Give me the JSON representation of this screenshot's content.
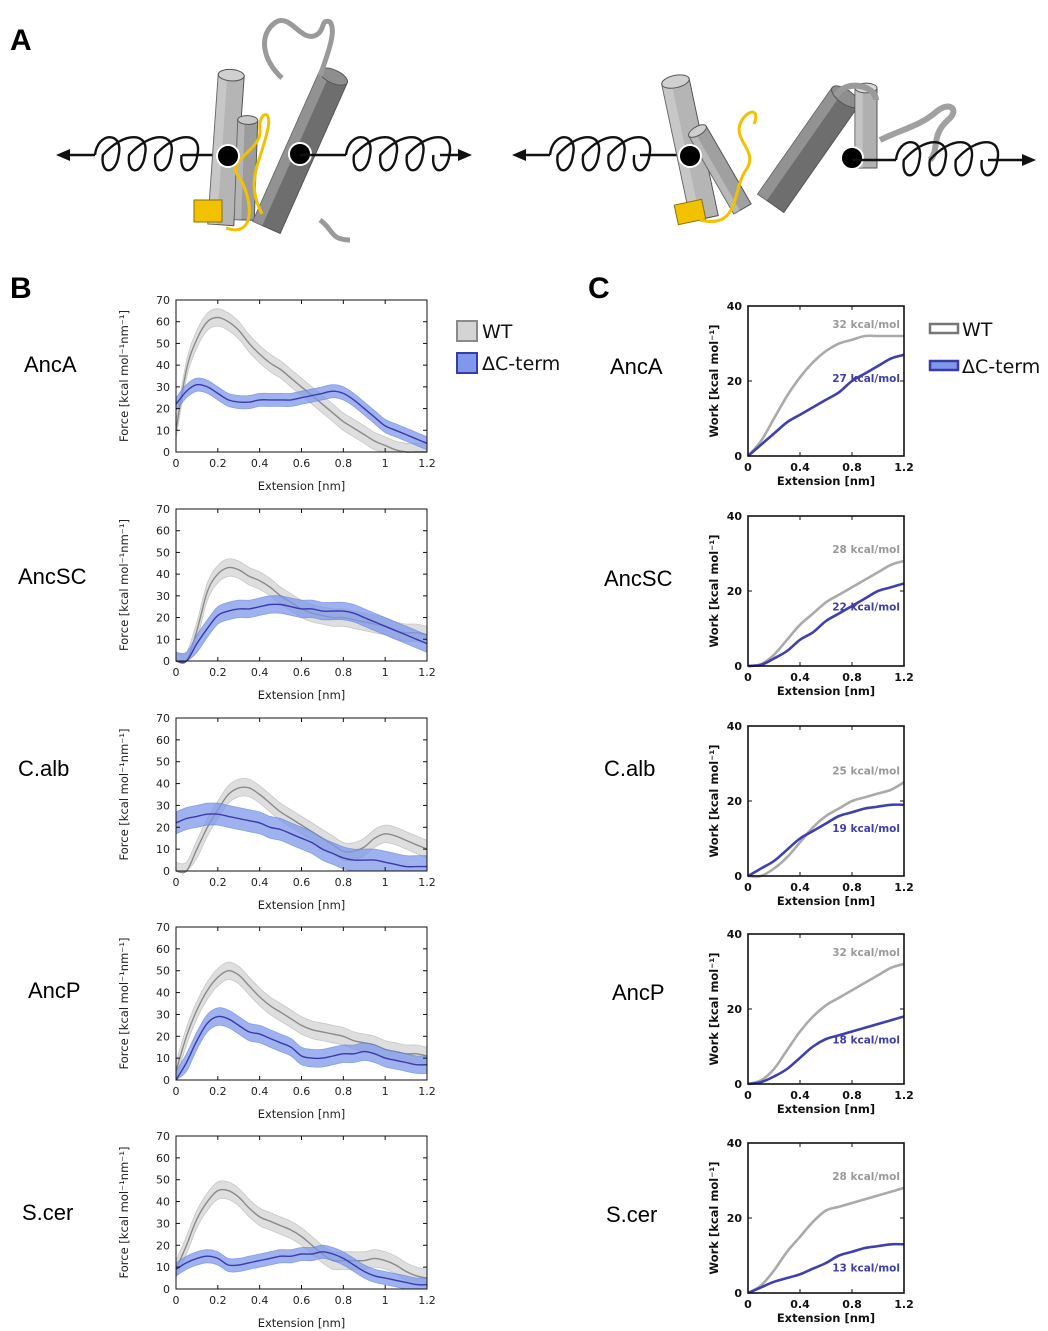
{
  "panels": {
    "a": "A",
    "b": "B",
    "c": "C"
  },
  "colors": {
    "wt_line": "#8a8a8a",
    "wt_band": "#d4d4d4",
    "dc_line": "#3a3aa8",
    "dc_band": "#7f98ea",
    "work_wt": "#aaaaaa",
    "work_dc": "#3f3fad",
    "helix_light": "#b8b8b8",
    "helix_dark": "#6a6a6a",
    "cterm_yellow": "#f2c200"
  },
  "legend_b": {
    "wt": "WT",
    "dc": "ΔC-term"
  },
  "legend_c": {
    "wt": "WT",
    "dc": "ΔC-term"
  },
  "chart_data": [
    {
      "panel": "B",
      "row": "AncA",
      "type": "line",
      "xlabel": "Extension [nm]",
      "ylabel": "Force [kcal mol⁻¹nm⁻¹]",
      "xlim": [
        0,
        1.2
      ],
      "ylim": [
        0,
        70
      ],
      "xticks": [
        "0",
        "0.2",
        "0.4",
        "0.6",
        "0.8",
        "1",
        "1.2"
      ],
      "yticks": [
        "0",
        "10",
        "20",
        "30",
        "40",
        "50",
        "60",
        "70"
      ],
      "x": [
        0,
        0.05,
        0.1,
        0.15,
        0.2,
        0.25,
        0.3,
        0.35,
        0.4,
        0.45,
        0.5,
        0.55,
        0.6,
        0.65,
        0.7,
        0.75,
        0.8,
        0.85,
        0.9,
        0.95,
        1.0,
        1.05,
        1.1,
        1.15,
        1.2
      ],
      "series": [
        {
          "name": "WT",
          "values": [
            10,
            38,
            52,
            60,
            62,
            60,
            56,
            50,
            45,
            41,
            38,
            34,
            30,
            26,
            22,
            18,
            14,
            11,
            8,
            5,
            3,
            1,
            0,
            0,
            0
          ],
          "band": 4
        },
        {
          "name": "ΔC-term",
          "values": [
            22,
            28,
            31,
            30,
            27,
            24,
            23,
            23,
            24,
            24,
            24,
            24,
            25,
            26,
            27,
            28,
            27,
            24,
            20,
            16,
            12,
            10,
            8,
            6,
            4
          ],
          "band": 3
        }
      ]
    },
    {
      "panel": "B",
      "row": "AncSC",
      "type": "line",
      "xlabel": "Extension [nm]",
      "ylabel": "Force [kcal mol⁻¹nm⁻¹]",
      "xlim": [
        0,
        1.2
      ],
      "ylim": [
        0,
        70
      ],
      "xticks": [
        "0",
        "0.2",
        "0.4",
        "0.6",
        "0.8",
        "1",
        "1.2"
      ],
      "yticks": [
        "0",
        "10",
        "20",
        "30",
        "40",
        "50",
        "60",
        "70"
      ],
      "x": [
        0,
        0.05,
        0.1,
        0.15,
        0.2,
        0.25,
        0.3,
        0.35,
        0.4,
        0.45,
        0.5,
        0.55,
        0.6,
        0.65,
        0.7,
        0.75,
        0.8,
        0.85,
        0.9,
        0.95,
        1.0,
        1.05,
        1.1,
        1.15,
        1.2
      ],
      "series": [
        {
          "name": "WT",
          "values": [
            0,
            0,
            14,
            32,
            40,
            43,
            42,
            39,
            37,
            34,
            30,
            27,
            24,
            22,
            21,
            20,
            20,
            19,
            18,
            17,
            16,
            14,
            13,
            13,
            12
          ],
          "band": 4
        },
        {
          "name": "ΔC-term",
          "values": [
            0,
            0,
            8,
            15,
            21,
            23,
            24,
            24,
            25,
            26,
            26,
            25,
            24,
            24,
            23,
            23,
            23,
            22,
            20,
            18,
            16,
            14,
            12,
            10,
            8
          ],
          "band": 4
        }
      ]
    },
    {
      "panel": "B",
      "row": "C.alb",
      "type": "line",
      "xlabel": "Extension [nm]",
      "ylabel": "Force [kcal mol⁻¹nm⁻¹]",
      "xlim": [
        0,
        1.2
      ],
      "ylim": [
        0,
        70
      ],
      "xticks": [
        "0",
        "0.2",
        "0.4",
        "0.6",
        "0.8",
        "1",
        "1.2"
      ],
      "yticks": [
        "0",
        "10",
        "20",
        "30",
        "40",
        "50",
        "60",
        "70"
      ],
      "x": [
        0,
        0.05,
        0.1,
        0.15,
        0.2,
        0.25,
        0.3,
        0.35,
        0.4,
        0.45,
        0.5,
        0.55,
        0.6,
        0.65,
        0.7,
        0.75,
        0.8,
        0.85,
        0.9,
        0.95,
        1.0,
        1.05,
        1.1,
        1.15,
        1.2
      ],
      "series": [
        {
          "name": "WT",
          "values": [
            0,
            0,
            10,
            20,
            28,
            35,
            38,
            38,
            35,
            31,
            27,
            24,
            21,
            18,
            15,
            12,
            9,
            9,
            11,
            15,
            17,
            16,
            14,
            12,
            10
          ],
          "band": 4
        },
        {
          "name": "ΔC-term",
          "values": [
            22,
            24,
            25,
            26,
            26,
            25,
            24,
            23,
            22,
            20,
            19,
            17,
            15,
            13,
            10,
            8,
            6,
            5,
            5,
            5,
            4,
            3,
            2,
            2,
            2
          ],
          "band": 5
        }
      ]
    },
    {
      "panel": "B",
      "row": "AncP",
      "type": "line",
      "xlabel": "Extension [nm]",
      "ylabel": "Force [kcal mol⁻¹nm⁻¹]",
      "xlim": [
        0,
        1.2
      ],
      "ylim": [
        0,
        70
      ],
      "xticks": [
        "0",
        "0.2",
        "0.4",
        "0.6",
        "0.8",
        "1",
        "1.2"
      ],
      "yticks": [
        "0",
        "10",
        "20",
        "30",
        "40",
        "50",
        "60",
        "70"
      ],
      "x": [
        0,
        0.05,
        0.1,
        0.15,
        0.2,
        0.25,
        0.3,
        0.35,
        0.4,
        0.45,
        0.5,
        0.55,
        0.6,
        0.65,
        0.7,
        0.75,
        0.8,
        0.85,
        0.9,
        0.95,
        1.0,
        1.05,
        1.1,
        1.15,
        1.2
      ],
      "series": [
        {
          "name": "WT",
          "values": [
            4,
            20,
            32,
            41,
            47,
            50,
            48,
            43,
            38,
            34,
            31,
            28,
            25,
            23,
            22,
            21,
            20,
            18,
            17,
            16,
            14,
            13,
            12,
            12,
            11
          ],
          "band": 4
        },
        {
          "name": "ΔC-term",
          "values": [
            0,
            8,
            18,
            26,
            29,
            28,
            25,
            22,
            21,
            19,
            17,
            15,
            11,
            10,
            10,
            11,
            12,
            12,
            13,
            12,
            10,
            9,
            8,
            7,
            7
          ],
          "band": 4
        }
      ]
    },
    {
      "panel": "B",
      "row": "S.cer",
      "type": "line",
      "xlabel": "Extension [nm]",
      "ylabel": "Force [kcal mol⁻¹nm⁻¹]",
      "xlim": [
        0,
        1.2
      ],
      "ylim": [
        0,
        70
      ],
      "xticks": [
        "0",
        "0.2",
        "0.4",
        "0.6",
        "0.8",
        "1",
        "1.2"
      ],
      "yticks": [
        "0",
        "10",
        "20",
        "30",
        "40",
        "50",
        "60",
        "70"
      ],
      "x": [
        0,
        0.05,
        0.1,
        0.15,
        0.2,
        0.25,
        0.3,
        0.35,
        0.4,
        0.45,
        0.5,
        0.55,
        0.6,
        0.65,
        0.7,
        0.75,
        0.8,
        0.85,
        0.9,
        0.95,
        1.0,
        1.05,
        1.1,
        1.15,
        1.2
      ],
      "series": [
        {
          "name": "WT",
          "values": [
            9,
            20,
            32,
            40,
            45,
            45,
            42,
            37,
            33,
            31,
            29,
            27,
            24,
            20,
            16,
            13,
            13,
            13,
            13,
            14,
            13,
            11,
            8,
            6,
            5
          ],
          "band": 4
        },
        {
          "name": "ΔC-term",
          "values": [
            9,
            12,
            14,
            15,
            14,
            11,
            11,
            12,
            13,
            14,
            15,
            15,
            16,
            16,
            17,
            16,
            14,
            11,
            8,
            6,
            5,
            4,
            3,
            2,
            2
          ],
          "band": 3
        }
      ]
    },
    {
      "panel": "C",
      "row": "AncA",
      "type": "line",
      "xlabel": "Extension [nm]",
      "ylabel": "Work [kcal mol⁻¹]",
      "xlim": [
        0,
        1.2
      ],
      "ylim": [
        0,
        40
      ],
      "xticks": [
        "0",
        "0.4",
        "0.8",
        "1.2"
      ],
      "yticks": [
        "0",
        "20",
        "40"
      ],
      "x": [
        0,
        0.1,
        0.2,
        0.3,
        0.4,
        0.5,
        0.6,
        0.7,
        0.8,
        0.9,
        1.0,
        1.1,
        1.2
      ],
      "series": [
        {
          "name": "WT",
          "values": [
            0,
            4,
            10,
            16,
            21,
            25,
            28,
            30,
            31,
            32,
            32,
            32,
            32
          ]
        },
        {
          "name": "ΔC-term",
          "values": [
            0,
            3,
            6,
            9,
            11,
            13,
            15,
            17,
            20,
            22,
            24,
            26,
            27
          ]
        }
      ],
      "annotations": [
        "32 kcal/mol",
        "27 kcal/mol"
      ]
    },
    {
      "panel": "C",
      "row": "AncSC",
      "type": "line",
      "xlabel": "Extension [nm]",
      "ylabel": "Work [kcal mol⁻¹]",
      "xlim": [
        0,
        1.2
      ],
      "ylim": [
        0,
        40
      ],
      "xticks": [
        "0",
        "0.4",
        "0.8",
        "1.2"
      ],
      "yticks": [
        "0",
        "20",
        "40"
      ],
      "x": [
        0,
        0.1,
        0.2,
        0.3,
        0.4,
        0.5,
        0.6,
        0.7,
        0.8,
        0.9,
        1.0,
        1.1,
        1.2
      ],
      "series": [
        {
          "name": "WT",
          "values": [
            0,
            0.5,
            3,
            7,
            11,
            14,
            17,
            19,
            21,
            23,
            25,
            27,
            28
          ]
        },
        {
          "name": "ΔC-term",
          "values": [
            0,
            0.3,
            2,
            4,
            7,
            9,
            12,
            14,
            16,
            18,
            20,
            21,
            22
          ]
        }
      ],
      "annotations": [
        "28 kcal/mol",
        "22 kcal/mol"
      ]
    },
    {
      "panel": "C",
      "row": "C.alb",
      "type": "line",
      "xlabel": "Extension [nm]",
      "ylabel": "Work [kcal mol⁻¹]",
      "xlim": [
        0,
        1.2
      ],
      "ylim": [
        0,
        40
      ],
      "xticks": [
        "0",
        "0.4",
        "0.8",
        "1.2"
      ],
      "yticks": [
        "0",
        "20",
        "40"
      ],
      "x": [
        0,
        0.1,
        0.2,
        0.3,
        0.4,
        0.5,
        0.6,
        0.7,
        0.8,
        0.9,
        1.0,
        1.1,
        1.2
      ],
      "series": [
        {
          "name": "WT",
          "values": [
            0,
            0,
            2,
            5,
            9,
            13,
            16,
            18,
            20,
            21,
            22,
            23,
            25
          ]
        },
        {
          "name": "ΔC-term",
          "values": [
            0,
            2,
            4,
            7,
            10,
            12,
            14,
            16,
            17,
            18,
            18.5,
            19,
            19
          ]
        }
      ],
      "annotations": [
        "25 kcal/mol",
        "19 kcal/mol"
      ]
    },
    {
      "panel": "C",
      "row": "AncP",
      "type": "line",
      "xlabel": "Extension [nm]",
      "ylabel": "Work [kcal mol⁻¹]",
      "xlim": [
        0,
        1.2
      ],
      "ylim": [
        0,
        40
      ],
      "xticks": [
        "0",
        "0.4",
        "0.8",
        "1.2"
      ],
      "yticks": [
        "0",
        "20",
        "40"
      ],
      "x": [
        0,
        0.1,
        0.2,
        0.3,
        0.4,
        0.5,
        0.6,
        0.7,
        0.8,
        0.9,
        1.0,
        1.1,
        1.2
      ],
      "series": [
        {
          "name": "WT",
          "values": [
            0,
            1,
            4,
            9,
            14,
            18,
            21,
            23,
            25,
            27,
            29,
            31,
            32
          ]
        },
        {
          "name": "ΔC-term",
          "values": [
            0,
            0.5,
            2,
            4,
            7,
            10,
            12,
            13,
            14,
            15,
            16,
            17,
            18
          ]
        }
      ],
      "annotations": [
        "32 kcal/mol",
        "18 kcal/mol"
      ]
    },
    {
      "panel": "C",
      "row": "S.cer",
      "type": "line",
      "xlabel": "Extension [nm]",
      "ylabel": "Work [kcal mol⁻¹]",
      "xlim": [
        0,
        1.2
      ],
      "ylim": [
        0,
        40
      ],
      "xticks": [
        "0",
        "0.4",
        "0.8",
        "1.2"
      ],
      "yticks": [
        "0",
        "20",
        "40"
      ],
      "x": [
        0,
        0.1,
        0.2,
        0.3,
        0.4,
        0.5,
        0.6,
        0.7,
        0.8,
        0.9,
        1.0,
        1.1,
        1.2
      ],
      "series": [
        {
          "name": "WT",
          "values": [
            0,
            2,
            6,
            11,
            15,
            19,
            22,
            23,
            24,
            25,
            26,
            27,
            28
          ]
        },
        {
          "name": "ΔC-term",
          "values": [
            0,
            1.5,
            3,
            4,
            5,
            6.5,
            8,
            10,
            11,
            12,
            12.5,
            13,
            13
          ]
        }
      ],
      "annotations": [
        "28 kcal/mol",
        "13 kcal/mol"
      ]
    }
  ]
}
